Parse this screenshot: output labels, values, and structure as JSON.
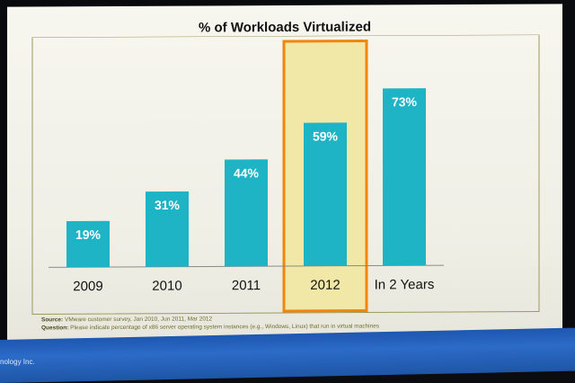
{
  "slide": {
    "source_label": "Source:",
    "source_text": "VMware customer survey, Jan 2010, Jun 2011, Mar 2012",
    "question_label": "Question:",
    "question_text": "Please indicate percentage of x86 server operating system instances (e.g., Windows, Linux) that run in virtual machines",
    "footer_text": "nology Inc."
  },
  "chart_data": {
    "type": "bar",
    "title": "% of Workloads Virtualized",
    "categories": [
      "2009",
      "2010",
      "2011",
      "2012",
      "In 2 Years"
    ],
    "values": [
      19,
      31,
      44,
      59,
      73
    ],
    "value_labels": [
      "19%",
      "31%",
      "44%",
      "59%",
      "73%"
    ],
    "highlighted_category": "2012",
    "ylim": [
      0,
      80
    ],
    "grid": false,
    "colors": {
      "bar": "#1fb3c6",
      "highlight_fill": "#f1e7a6",
      "highlight_border": "#f0860f",
      "frame": "#9c9a5a"
    }
  }
}
